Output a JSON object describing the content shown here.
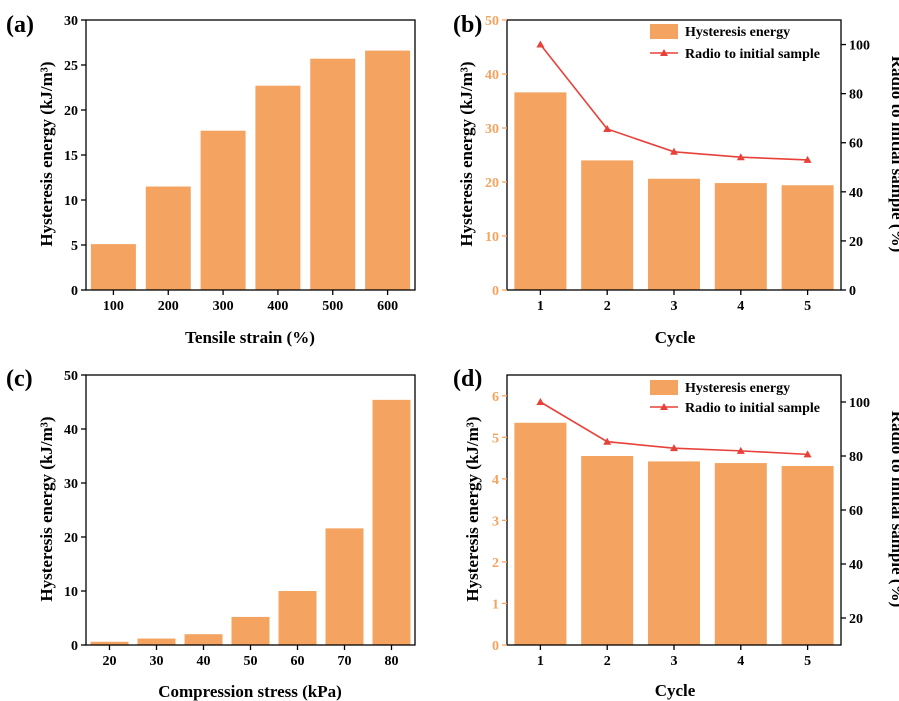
{
  "colors": {
    "bar": "#F4A460",
    "line": "#E8413A",
    "axis": "#000000",
    "right_axis_b": "#000000",
    "left_axis_b": "#F4A460"
  },
  "panels": [
    {
      "label": "(a)",
      "xlabel": "Tensile strain (%)",
      "ylabel": "Hysteresis energy (kJ/m³)"
    },
    {
      "label": "(b)",
      "xlabel": "Cycle",
      "ylabel": "Hysteresis energy (kJ/m³)",
      "y2label": "Radio to initial sample (%)",
      "legend": {
        "bar": "Hysteresis energy",
        "line": "Radio to initial sample"
      }
    },
    {
      "label": "(c)",
      "xlabel": "Compression stress (kPa)",
      "ylabel": "Hysteresis energy (kJ/m³)"
    },
    {
      "label": "(d)",
      "xlabel": "Cycle",
      "ylabel": "Hysteresis energy (kJ/m³)",
      "y2label": "Radio to initial sample (%)",
      "legend": {
        "bar": "Hysteresis energy",
        "line": "Radio to initial sample"
      }
    }
  ],
  "chart_data": [
    {
      "type": "bar",
      "panel": "(a)",
      "categories": [
        "100",
        "200",
        "300",
        "400",
        "500",
        "600"
      ],
      "values": [
        5.1,
        11.5,
        17.7,
        22.7,
        25.7,
        26.6
      ],
      "xlabel": "Tensile strain (%)",
      "ylabel": "Hysteresis energy (kJ/m³)",
      "ylim": [
        0,
        30
      ],
      "yticks": [
        0,
        5,
        10,
        15,
        20,
        25,
        30
      ]
    },
    {
      "type": "bar",
      "panel": "(b)",
      "categories": [
        "1",
        "2",
        "3",
        "4",
        "5"
      ],
      "series": [
        {
          "name": "Hysteresis energy",
          "type": "bar",
          "axis": "left",
          "values": [
            36.6,
            24.0,
            20.6,
            19.8,
            19.4
          ]
        },
        {
          "name": "Radio to initial sample",
          "type": "line",
          "axis": "right",
          "values": [
            100,
            65.6,
            56.3,
            54.1,
            53.0
          ]
        }
      ],
      "xlabel": "Cycle",
      "ylabel": "Hysteresis energy (kJ/m³)",
      "y2label": "Radio to initial sample (%)",
      "ylim": [
        0,
        50
      ],
      "yticks": [
        0,
        10,
        20,
        30,
        40,
        50
      ],
      "y2lim": [
        0,
        110
      ],
      "y2ticks": [
        0,
        20,
        40,
        60,
        80,
        100
      ],
      "legend_position": "top-right"
    },
    {
      "type": "bar",
      "panel": "(c)",
      "categories": [
        "20",
        "30",
        "40",
        "50",
        "60",
        "70",
        "80"
      ],
      "values": [
        0.6,
        1.2,
        2.0,
        5.2,
        10.0,
        21.6,
        45.4
      ],
      "xlabel": "Compression stress (kPa)",
      "ylabel": "Hysteresis energy (kJ/m³)",
      "ylim": [
        0,
        50
      ],
      "yticks": [
        0,
        10,
        20,
        30,
        40,
        50
      ]
    },
    {
      "type": "bar",
      "panel": "(d)",
      "categories": [
        "1",
        "2",
        "3",
        "4",
        "5"
      ],
      "series": [
        {
          "name": "Hysteresis energy",
          "type": "bar",
          "axis": "left",
          "values": [
            5.35,
            4.55,
            4.42,
            4.38,
            4.31
          ]
        },
        {
          "name": "Radio to initial sample",
          "type": "line",
          "axis": "right",
          "values": [
            100,
            85.3,
            82.9,
            81.9,
            80.6
          ]
        }
      ],
      "xlabel": "Cycle",
      "ylabel": "Hysteresis energy (kJ/m³)",
      "y2label": "Radio to initial sample (%)",
      "ylim": [
        0,
        6.5
      ],
      "yticks": [
        0,
        1,
        2,
        3,
        4,
        5,
        6
      ],
      "y2lim": [
        10,
        110
      ],
      "y2ticks": [
        20,
        40,
        60,
        80,
        100
      ],
      "legend_position": "top-right"
    }
  ]
}
